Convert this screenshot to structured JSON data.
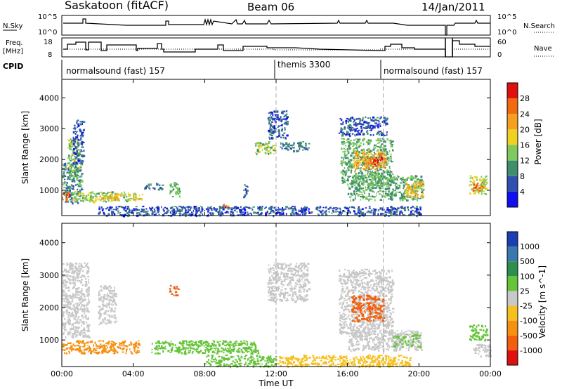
{
  "header": {
    "station": "Saskatoon (fitACF)",
    "beam": "Beam 06",
    "date": "14/Jan/2011"
  },
  "noise_panel": {
    "left_label": "N.Sky",
    "right_label": "N.Search",
    "left_ticks": [
      "10^5",
      "10^0"
    ],
    "right_ticks": [
      "10^5",
      "10^0"
    ]
  },
  "freq_panel": {
    "left_label_1": "Freq.",
    "left_label_2": "[MHz]",
    "right_label": "Nave",
    "left_ticks": [
      "18",
      "8"
    ],
    "right_ticks": [
      "60",
      "0"
    ]
  },
  "cpid": {
    "label": "CPID",
    "segments": [
      {
        "text": "normalsound (fast) 157",
        "start_hour": 0
      },
      {
        "text": "themis 3300",
        "start_hour": 12
      },
      {
        "text": "normalsound (fast) 157",
        "start_hour": 18
      }
    ]
  },
  "time_axis": {
    "ticks": [
      "00:00",
      "04:00",
      "08:00",
      "12:00",
      "16:00",
      "20:00",
      "00:00"
    ],
    "label": "Time UT"
  },
  "range_ticks": [
    "1000",
    "2000",
    "3000",
    "4000"
  ],
  "power_panel": {
    "ylabel": "Slant Range [km]",
    "colorbar_label": "Power [dB]",
    "colorbar_ticks": [
      "4",
      "8",
      "12",
      "16",
      "20",
      "24",
      "28"
    ],
    "colors": [
      "#1010ee",
      "#3050b0",
      "#3f8f6f",
      "#7fc95f",
      "#f0d020",
      "#f5a020",
      "#f26a10",
      "#e01010"
    ]
  },
  "velocity_panel": {
    "ylabel": "Slant Range [km]",
    "colorbar_label": "Velocity [m s^-1]",
    "colorbar_ticks": [
      "1000",
      "500",
      "100",
      "25",
      "-25",
      "-100",
      "-500",
      "-1000"
    ],
    "colors": [
      "#1a3fb0",
      "#3a78b0",
      "#2d8f4f",
      "#66c43a",
      "#c8c8c8",
      "#f5c020",
      "#f59010",
      "#f06010",
      "#e01010"
    ]
  },
  "chart_data": {
    "type": "heatmap",
    "title": "Saskatoon (fitACF) Beam 06 14/Jan/2011",
    "xlabel": "Time UT",
    "ylabel": "Slant Range [km]",
    "xlim": [
      0,
      24
    ],
    "ylim": [
      180,
      4600
    ],
    "cpid_boundaries_hours": [
      12,
      18
    ],
    "power_regions": [
      {
        "t0": 0.0,
        "t1": 1.1,
        "r0": 600,
        "r1": 1900,
        "power_db": 10
      },
      {
        "t0": 0.3,
        "t1": 1.0,
        "r0": 1400,
        "r1": 2700,
        "power_db": 14
      },
      {
        "t0": 0.6,
        "t1": 1.2,
        "r0": 1900,
        "r1": 3300,
        "power_db": 6
      },
      {
        "t0": 0.0,
        "t1": 0.4,
        "r0": 700,
        "r1": 1000,
        "power_db": 26
      },
      {
        "t0": 0.5,
        "t1": 4.1,
        "r0": 650,
        "r1": 980,
        "power_db": 14
      },
      {
        "t0": 2.0,
        "t1": 3.3,
        "r0": 700,
        "r1": 900,
        "power_db": 20
      },
      {
        "t0": 3.5,
        "t1": 4.5,
        "r0": 700,
        "r1": 900,
        "power_db": 18
      },
      {
        "t0": 4.6,
        "t1": 5.6,
        "r0": 1050,
        "r1": 1250,
        "power_db": 8
      },
      {
        "t0": 6.0,
        "t1": 6.6,
        "r0": 800,
        "r1": 1300,
        "power_db": 12
      },
      {
        "t0": 8.9,
        "t1": 9.3,
        "r0": 400,
        "r1": 560,
        "power_db": 26
      },
      {
        "t0": 10.1,
        "t1": 10.4,
        "r0": 800,
        "r1": 1200,
        "power_db": 8
      },
      {
        "t0": 2.0,
        "t1": 20.1,
        "r0": 200,
        "r1": 500,
        "power_db": 6
      },
      {
        "t0": 10.8,
        "t1": 11.9,
        "r0": 2200,
        "r1": 2600,
        "power_db": 14
      },
      {
        "t0": 11.5,
        "t1": 12.6,
        "r0": 2700,
        "r1": 3600,
        "power_db": 6
      },
      {
        "t0": 12.2,
        "t1": 13.8,
        "r0": 2300,
        "r1": 2600,
        "power_db": 8
      },
      {
        "t0": 15.5,
        "t1": 18.2,
        "r0": 2800,
        "r1": 3400,
        "power_db": 6
      },
      {
        "t0": 15.6,
        "t1": 18.5,
        "r0": 1200,
        "r1": 2700,
        "power_db": 12
      },
      {
        "t0": 16.3,
        "t1": 18.1,
        "r0": 1700,
        "r1": 2300,
        "power_db": 22
      },
      {
        "t0": 17.2,
        "t1": 18.0,
        "r0": 1800,
        "r1": 2100,
        "power_db": 28
      },
      {
        "t0": 16.0,
        "t1": 20.2,
        "r0": 700,
        "r1": 1500,
        "power_db": 12
      },
      {
        "t0": 19.2,
        "t1": 20.2,
        "r0": 800,
        "r1": 1300,
        "power_db": 20
      },
      {
        "t0": 22.8,
        "t1": 23.8,
        "r0": 900,
        "r1": 1500,
        "power_db": 16
      },
      {
        "t0": 23.0,
        "t1": 23.6,
        "r0": 1000,
        "r1": 1300,
        "power_db": 26
      }
    ],
    "velocity_regions": [
      {
        "t0": 0.0,
        "t1": 1.5,
        "r0": 1100,
        "r1": 3400,
        "vel": 0
      },
      {
        "t0": 0.0,
        "t1": 4.3,
        "r0": 600,
        "r1": 1000,
        "vel": -200
      },
      {
        "t0": 2.0,
        "t1": 3.0,
        "r0": 1500,
        "r1": 2700,
        "vel": 0
      },
      {
        "t0": 6.0,
        "t1": 6.5,
        "r0": 2400,
        "r1": 2700,
        "vel": -600
      },
      {
        "t0": 5.0,
        "t1": 11.0,
        "r0": 600,
        "r1": 1000,
        "vel": 60
      },
      {
        "t0": 8.0,
        "t1": 12.0,
        "r0": 200,
        "r1": 550,
        "vel": 50
      },
      {
        "t0": 11.5,
        "t1": 13.8,
        "r0": 2200,
        "r1": 3400,
        "vel": 0
      },
      {
        "t0": 12.0,
        "t1": 19.5,
        "r0": 200,
        "r1": 550,
        "vel": -80
      },
      {
        "t0": 15.5,
        "t1": 18.5,
        "r0": 1200,
        "r1": 3200,
        "vel": 0
      },
      {
        "t0": 16.2,
        "t1": 18.0,
        "r0": 1600,
        "r1": 2400,
        "vel": -700
      },
      {
        "t0": 16.0,
        "t1": 20.1,
        "r0": 700,
        "r1": 1300,
        "vel": 0
      },
      {
        "t0": 18.5,
        "t1": 20.1,
        "r0": 800,
        "r1": 1200,
        "vel": 30
      },
      {
        "t0": 22.8,
        "t1": 23.8,
        "r0": 1000,
        "r1": 1500,
        "vel": 60
      },
      {
        "t0": 23.0,
        "t1": 24.0,
        "r0": 500,
        "r1": 900,
        "vel": 0
      }
    ]
  }
}
